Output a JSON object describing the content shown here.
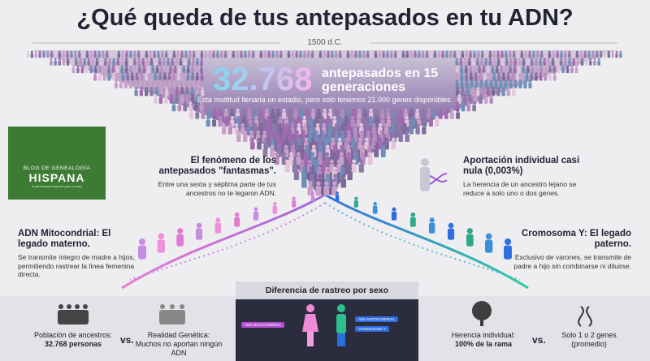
{
  "header": {
    "title": "¿Qué queda de tus antepasados en tu ADN?",
    "era": "1500 d.C."
  },
  "hero": {
    "number": "32.768",
    "label": "antepasados en 15 generaciones",
    "note": "Esta multitud llenaría un estadio, pero solo tenemos 21.000 genes disponibles."
  },
  "logo": {
    "line1": "BLOG DE GENEALOGÍA",
    "brand": "HISPANA",
    "tagline": "la genealogía hispana paso a paso"
  },
  "sections": {
    "ghosts": {
      "title": "El fenómeno de los antepasados \"fantasmas\".",
      "text": "Entre una sexta y séptima parte de tus ancestros no te legaron ADN."
    },
    "individual": {
      "title": "Aportación individual casi nula (0,003%)",
      "text": "La herencia de un ancestro lejano se reduce a solo uno o dos genes."
    },
    "mito": {
      "title": "ADN Mitocondrial: El legado materno.",
      "text": "Se transmite íntegro de madre a hijos, permitiendo rastrear la línea femenina directa."
    },
    "ychrom": {
      "title": "Cromosoma Y: El legado paterno.",
      "text": "Exclusivo de varones, se transmite de padre a hijo sin combinarse ni diluirse."
    }
  },
  "comparison": {
    "title": "Diferencia de rastreo por sexo",
    "labels": [
      "ADN MITOCONDRIAL",
      "ADN MITOCONDRIAL",
      "CROMOSOMA Y"
    ]
  },
  "footer": {
    "left": {
      "label": "Población de ancestros:",
      "value": "32.768 personas"
    },
    "left_vs": "vs.",
    "reality": {
      "label": "Realidad Genética:",
      "value": "Muchos no aportan ningún ADN"
    },
    "right": {
      "label": "Herencia individual:",
      "value": "100% de la rama"
    },
    "right_vs": "vs.",
    "genes": {
      "label": "Solo 1 o 2 genes",
      "value": "(promedio)"
    }
  }
}
